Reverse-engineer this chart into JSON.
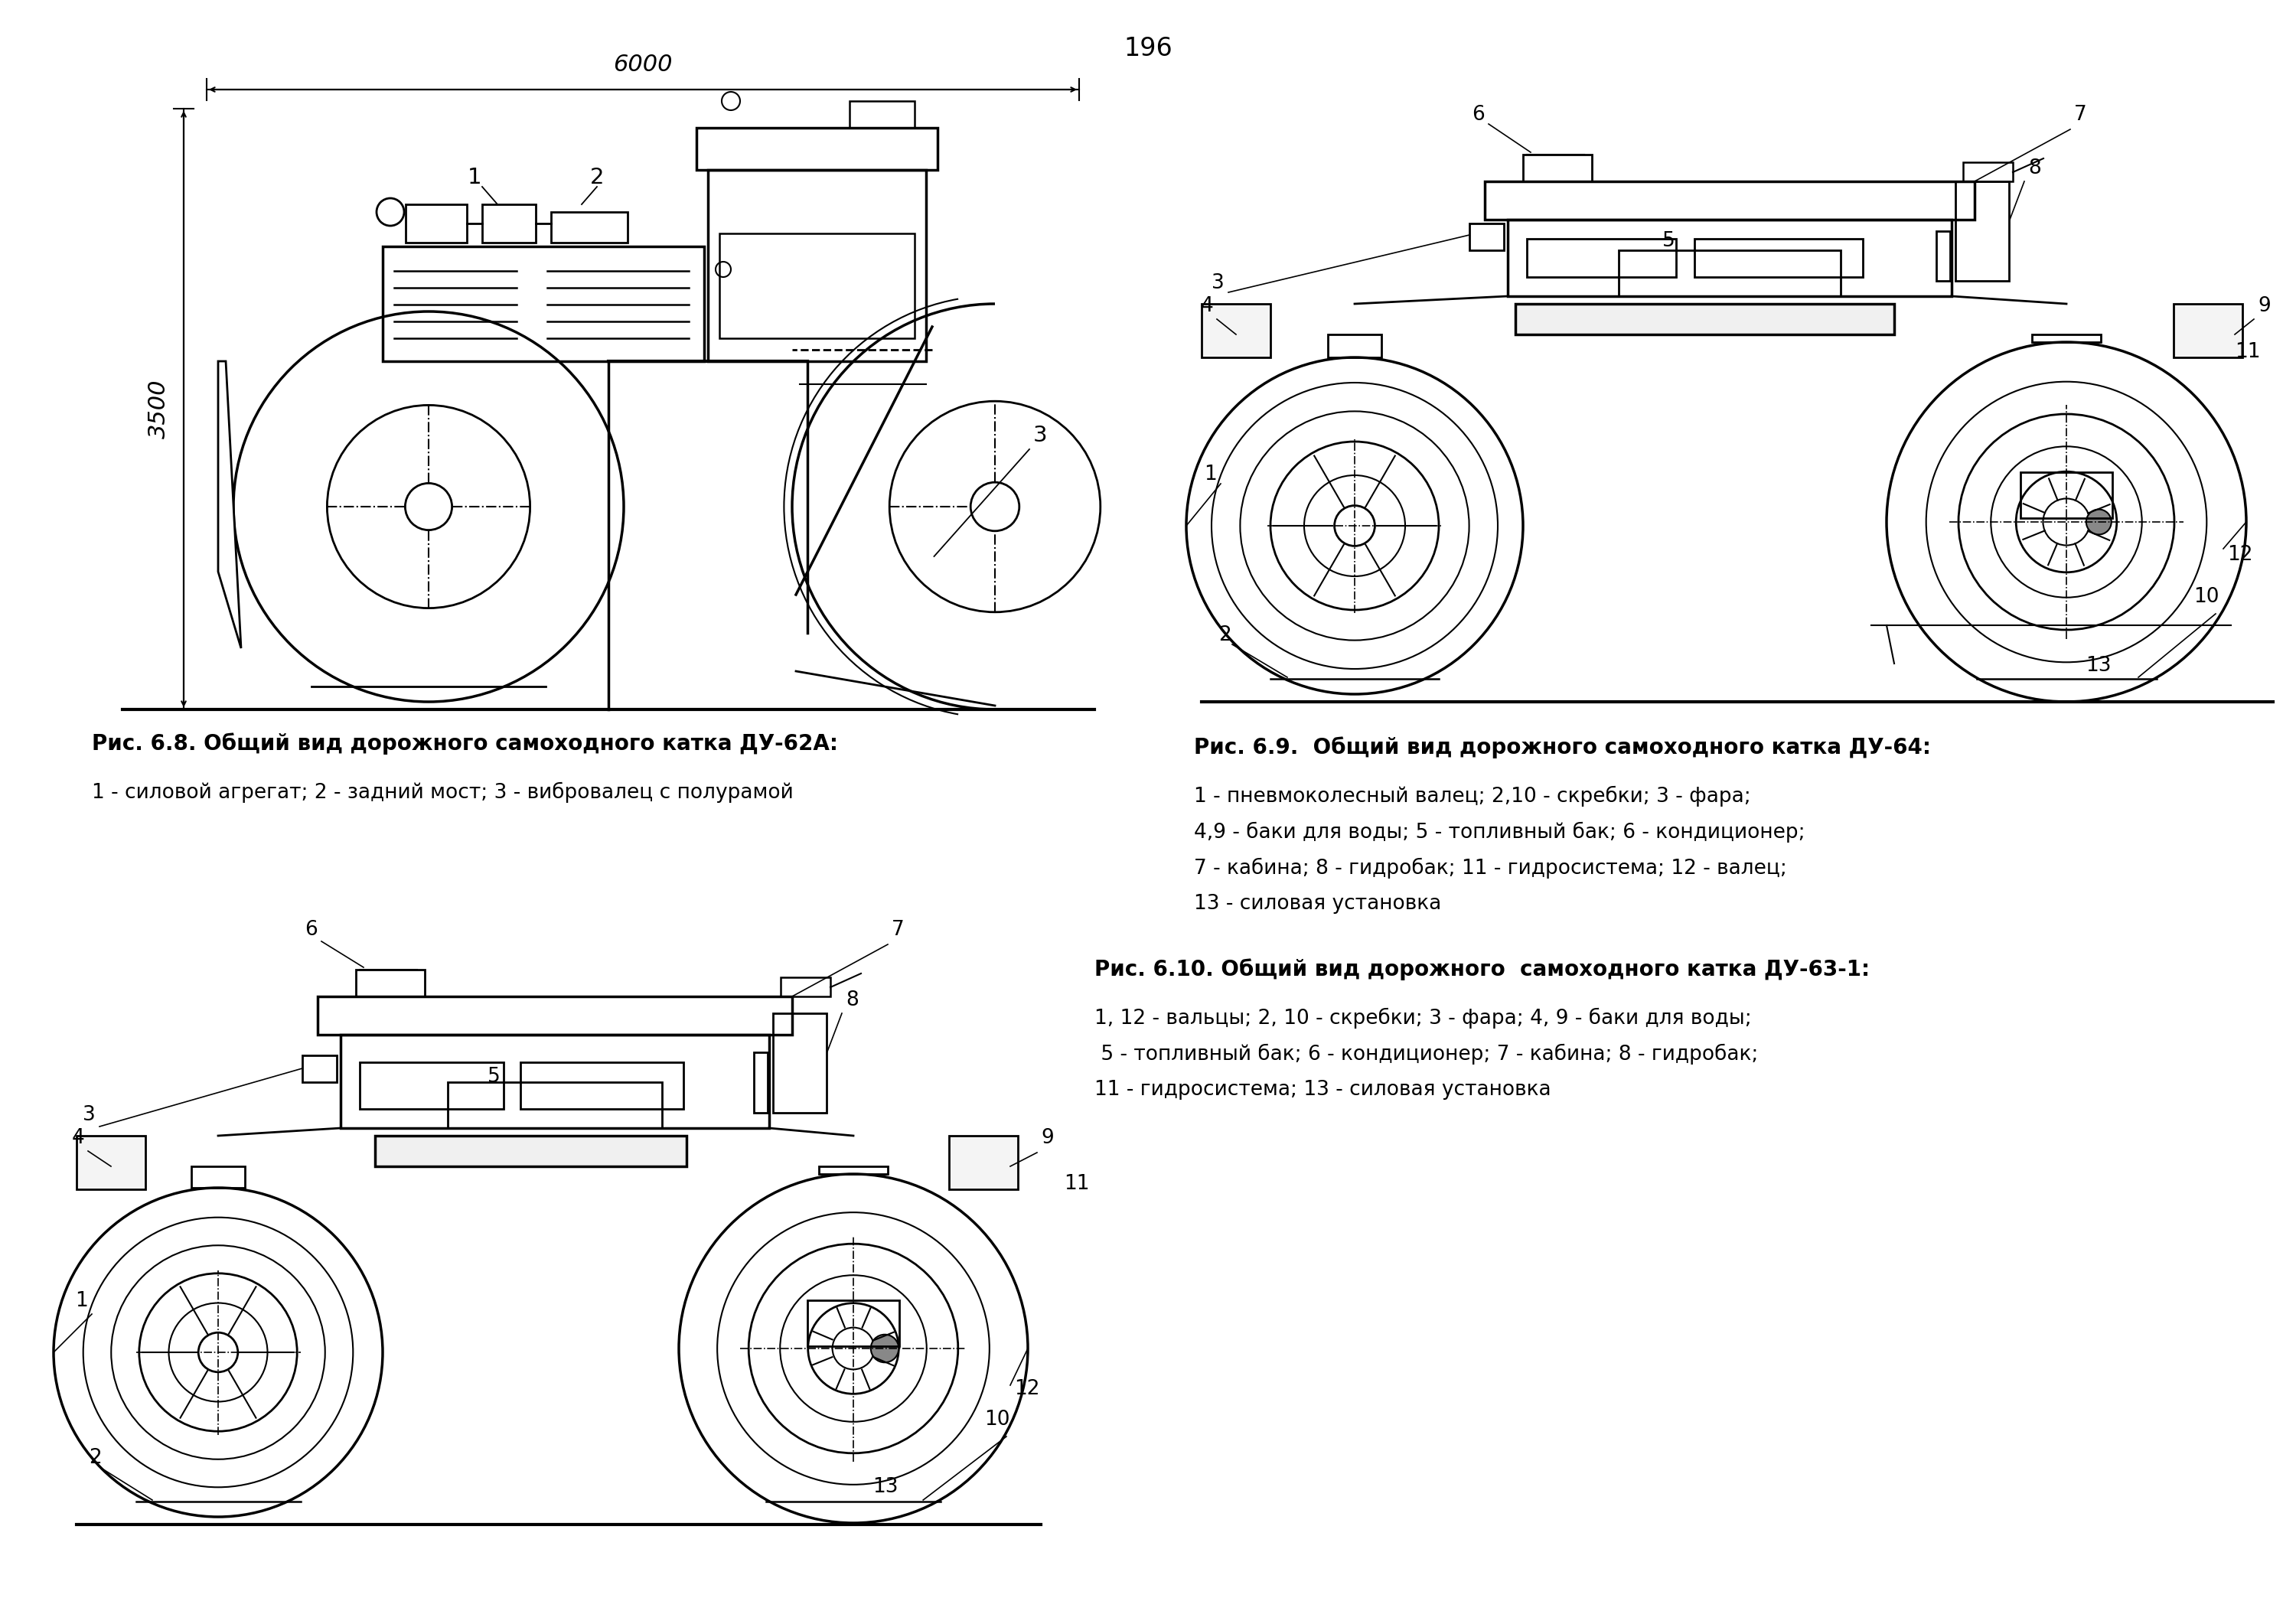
{
  "page_number": "196",
  "background_color": "#ffffff",
  "text_color": "#000000",
  "fig68_caption_bold": "Рис. 6.8. Общий вид дорожного самоходного катка ДУ-62А:",
  "fig68_caption_normal": "1 - силовой агрегат; 2 - задний мост; 3 - вибровалец с полурамой",
  "fig69_caption_bold": "Рис. 6.9.  Общий вид дорожного самоходного катка ДУ-64:",
  "fig69_caption_line1": "1 - пневмоколесный валец; 2,10 - скребки; 3 - фара;",
  "fig69_caption_line2": "4,9 - баки для воды; 5 - топливный бак; 6 - кондиционер;",
  "fig69_caption_line3": "7 - кабина; 8 - гидробак; 11 - гидросистема; 12 - валец;",
  "fig69_caption_line4": "13 - силовая установка",
  "fig610_caption_bold": "Рис. 6.10. Общий вид дорожного  самоходного катка ДУ-63-1:",
  "fig610_caption_line1": "1, 12 - вальцы; 2, 10 - скребки; 3 - фара; 4, 9 - баки для воды;",
  "fig610_caption_line2": " 5 - топливный бак; 6 - кондиционер; 7 - кабина; 8 - гидробак;",
  "fig610_caption_line3": "11 - гидросистема; 13 - силовая установка",
  "dim_6000": "6000",
  "dim_3500": "3500",
  "lc": "#000000",
  "lw_main": 2.0,
  "lw_thin": 1.2,
  "lw_thick": 3.0
}
